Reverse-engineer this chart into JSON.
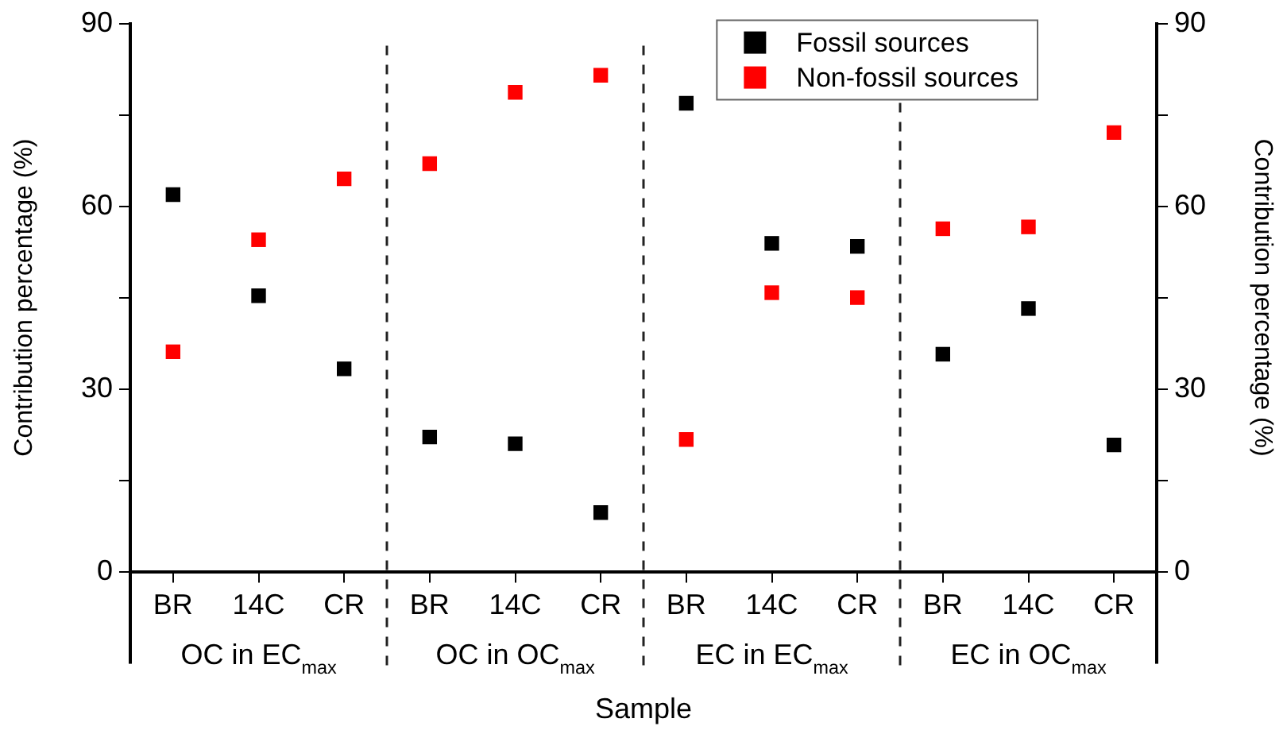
{
  "chart_data": {
    "type": "scatter",
    "xlabel": "Sample",
    "ylabel": "Contribution percentage (%)",
    "y2label": "Contribution percentage (%)",
    "categories": [
      "BR",
      "14C",
      "CR",
      "BR",
      "14C",
      "CR",
      "BR",
      "14C",
      "CR",
      "BR",
      "14C",
      "CR"
    ],
    "annotations": [
      "OC in EC$_{max}$",
      "OC in OC$_{max}$",
      "EC in EC$_{max}$",
      "EC in OC$_{max}$"
    ],
    "series": [
      {
        "name": "Fossil sources",
        "color": "#000000",
        "values": [
          61.9,
          45.3,
          33.3,
          22.1,
          21.0,
          9.7,
          76.9,
          53.9,
          53.4,
          35.7,
          43.2,
          20.8
        ]
      },
      {
        "name": "Non-fossil sources",
        "color": "#ff0000",
        "values": [
          36.1,
          54.5,
          64.5,
          67.0,
          78.7,
          81.5,
          21.7,
          45.8,
          45.0,
          56.3,
          56.6,
          72.1
        ]
      }
    ],
    "ylim": [
      0,
      90
    ],
    "yticks": [
      0,
      {
        "value": 15,
        "label": null
      },
      30,
      {
        "value": 45,
        "label": null
      },
      60,
      {
        "value": 75,
        "label": null
      },
      90
    ],
    "y2lim": [
      0,
      90
    ],
    "y2ticks": [
      0,
      {
        "value": 15,
        "label": null
      },
      30,
      {
        "value": 45,
        "label": null
      },
      60,
      {
        "value": 75,
        "label": null
      },
      90
    ],
    "grid": false,
    "legend": "top right",
    "marker": "square"
  }
}
